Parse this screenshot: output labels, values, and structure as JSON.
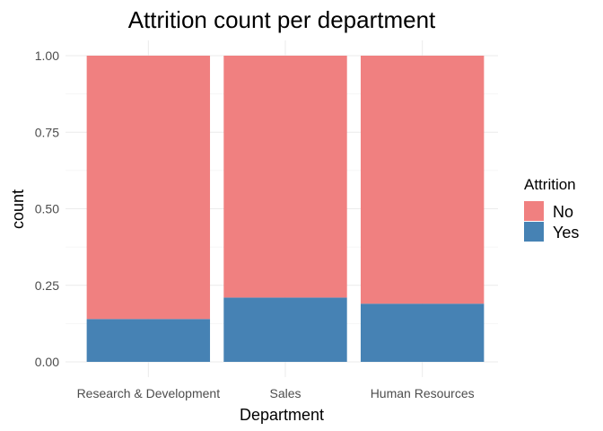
{
  "chart_data": {
    "type": "bar",
    "stacked": true,
    "title": "Attrition count per department",
    "xlabel": "Department",
    "ylabel": "count",
    "ylim": [
      0,
      1
    ],
    "yticks": [
      "0.00",
      "0.25",
      "0.50",
      "0.75",
      "1.00"
    ],
    "ytick_values": [
      0,
      0.25,
      0.5,
      0.75,
      1
    ],
    "grid": true,
    "categories": [
      "Research & Development",
      "Sales",
      "Human Resources"
    ],
    "series": [
      {
        "name": "Yes",
        "color": "#4682b4",
        "values": [
          0.14,
          0.21,
          0.19
        ]
      },
      {
        "name": "No",
        "color": "#f08080",
        "values": [
          0.86,
          0.79,
          0.81
        ]
      }
    ],
    "legend": {
      "title": "Attrition",
      "placement": "right",
      "entries": [
        {
          "label": "No",
          "color": "#f08080"
        },
        {
          "label": "Yes",
          "color": "#4682b4"
        }
      ]
    }
  }
}
